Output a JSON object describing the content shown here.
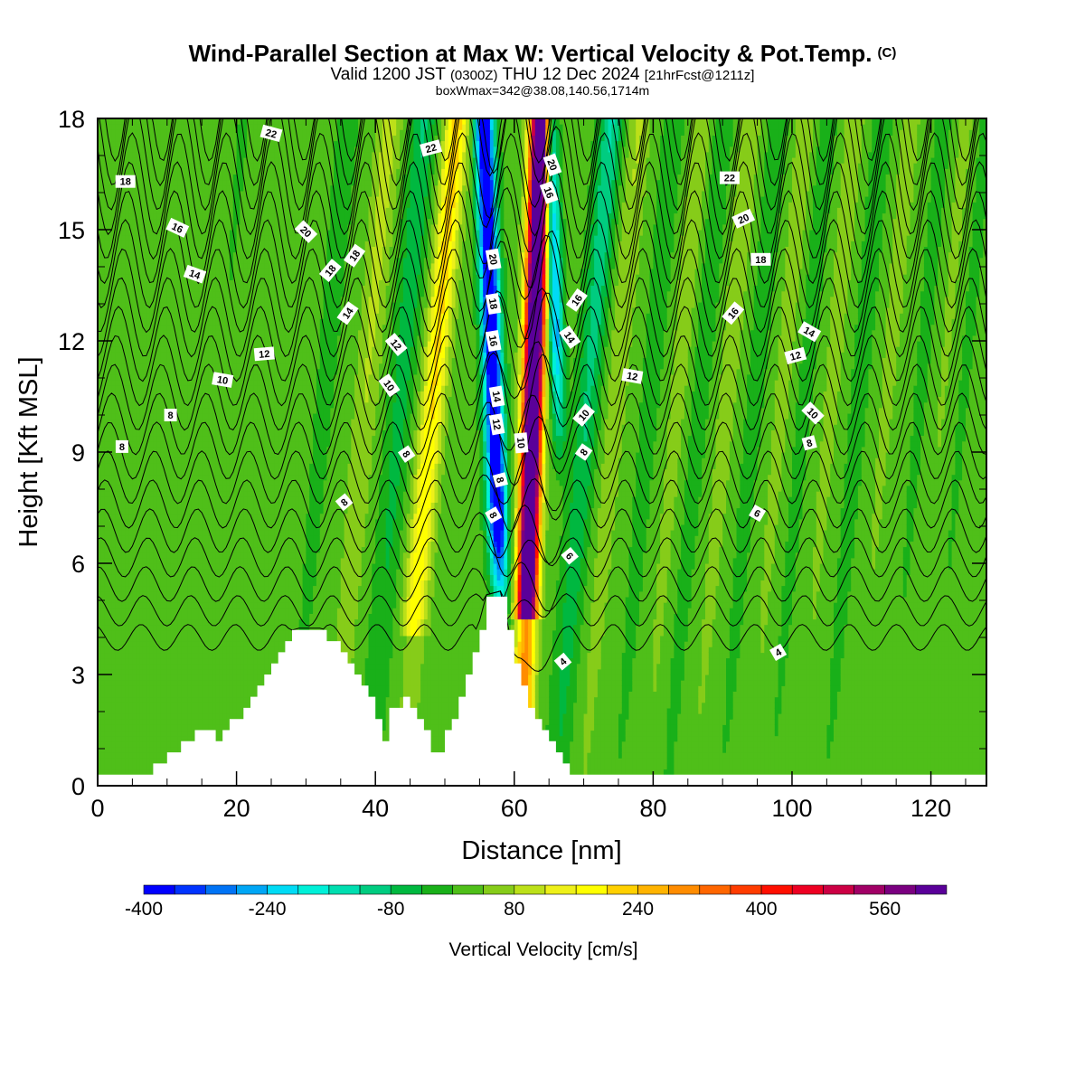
{
  "header": {
    "title": "Wind-Parallel Section at Max W: Vertical Velocity & Pot.Temp.",
    "copyright_mark": "(C)",
    "valid_prefix": "Valid 1200 JST",
    "valid_z": "(0300Z)",
    "valid_date": "THU 12 Dec 2024",
    "forecast": "[21hrFcst@1211z]",
    "box_info": "boxWmax=342@38.08,140.56,1714m"
  },
  "colors": {
    "shade_scale": [
      "#0000ff",
      "#0033ff",
      "#0073f5",
      "#00a6f5",
      "#00dbf5",
      "#00f0d8",
      "#00deb0",
      "#00cc80",
      "#00b840",
      "#19b019",
      "#4fbf19",
      "#86cc19",
      "#bce019",
      "#eef019",
      "#ffff00",
      "#ffd000",
      "#ffb300",
      "#ff8c00",
      "#ff6600",
      "#ff3c00",
      "#ff0f00",
      "#ee0022",
      "#cc0044",
      "#a10066",
      "#7a0080",
      "#5a0099"
    ],
    "terrain": "#ffffff",
    "contour": "#000000"
  },
  "chart_data": {
    "type": "heatmap",
    "xlabel": "Distance [nm]",
    "ylabel": "Height [Kft MSL]",
    "xlim": [
      0,
      128
    ],
    "ylim": [
      0,
      18
    ],
    "x_ticks": [
      "0",
      "20",
      "40",
      "60",
      "80",
      "100",
      "120"
    ],
    "y_ticks": [
      "0",
      "3",
      "6",
      "9",
      "12",
      "15",
      "18"
    ],
    "colorbar": {
      "title": "Vertical Velocity [cm/s]",
      "min": -400,
      "max": 640,
      "step": 40,
      "tick_labels": [
        "-400",
        "-240",
        "-80",
        "80",
        "240",
        "400",
        "560"
      ],
      "tick_values": [
        -400,
        -240,
        -80,
        80,
        240,
        400,
        560
      ]
    },
    "terrain_profile": [
      [
        0,
        0.3
      ],
      [
        6.5,
        0.3
      ],
      [
        8,
        0.6
      ],
      [
        10.5,
        0.9
      ],
      [
        13,
        1.3
      ],
      [
        15,
        1.6
      ],
      [
        17,
        1.3
      ],
      [
        18,
        1.6
      ],
      [
        20,
        1.9
      ],
      [
        22,
        2.5
      ],
      [
        24,
        3.1
      ],
      [
        26,
        3.7
      ],
      [
        27,
        4.0
      ],
      [
        29,
        4.1
      ],
      [
        32,
        4.1
      ],
      [
        33,
        3.9
      ],
      [
        35,
        3.6
      ],
      [
        37,
        3.1
      ],
      [
        39,
        2.5
      ],
      [
        40,
        1.9
      ],
      [
        41,
        1.3
      ],
      [
        42,
        2.0
      ],
      [
        44,
        2.3
      ],
      [
        45,
        2.2
      ],
      [
        46,
        1.7
      ],
      [
        48,
        1.0
      ],
      [
        49,
        0.9
      ],
      [
        50,
        1.5
      ],
      [
        52,
        2.3
      ],
      [
        54,
        3.6
      ],
      [
        55,
        4.3
      ],
      [
        56,
        5.0
      ],
      [
        58,
        5.1
      ],
      [
        60,
        3.4
      ],
      [
        62,
        2.0
      ],
      [
        64,
        1.6
      ],
      [
        65,
        1.2
      ],
      [
        66,
        0.9
      ],
      [
        67,
        0.6
      ],
      [
        68,
        0.3
      ],
      [
        128,
        0.3
      ]
    ],
    "contour_labels": [
      {
        "x": 25,
        "y": 17.6,
        "value": "22",
        "angle": 15
      },
      {
        "x": 48,
        "y": 17.2,
        "value": "22",
        "angle": -15
      },
      {
        "x": 4,
        "y": 16.3,
        "value": "18",
        "angle": 0
      },
      {
        "x": 11.5,
        "y": 15.05,
        "value": "16",
        "angle": 25
      },
      {
        "x": 14,
        "y": 13.8,
        "value": "14",
        "angle": 20
      },
      {
        "x": 30,
        "y": 14.95,
        "value": "20",
        "angle": 45
      },
      {
        "x": 33.5,
        "y": 13.9,
        "value": "18",
        "angle": -50
      },
      {
        "x": 37,
        "y": 14.3,
        "value": "18",
        "angle": -55
      },
      {
        "x": 36,
        "y": 12.75,
        "value": "14",
        "angle": -55
      },
      {
        "x": 24,
        "y": 11.65,
        "value": "12",
        "angle": -5
      },
      {
        "x": 18,
        "y": 10.95,
        "value": "10",
        "angle": 10
      },
      {
        "x": 10.5,
        "y": 10.0,
        "value": "8",
        "angle": 0
      },
      {
        "x": 3.5,
        "y": 9.15,
        "value": "8",
        "angle": 0
      },
      {
        "x": 43,
        "y": 11.9,
        "value": "12",
        "angle": 50
      },
      {
        "x": 42,
        "y": 10.8,
        "value": "10",
        "angle": 55
      },
      {
        "x": 44.5,
        "y": 8.95,
        "value": "8",
        "angle": 55
      },
      {
        "x": 35.5,
        "y": 7.65,
        "value": "8",
        "angle": -40
      },
      {
        "x": 57,
        "y": 14.2,
        "value": "20",
        "angle": 80
      },
      {
        "x": 57,
        "y": 13.0,
        "value": "18",
        "angle": 80
      },
      {
        "x": 57,
        "y": 12.0,
        "value": "16",
        "angle": 80
      },
      {
        "x": 57.5,
        "y": 10.5,
        "value": "14",
        "angle": 80
      },
      {
        "x": 57.5,
        "y": 9.75,
        "value": "12",
        "angle": 80
      },
      {
        "x": 61,
        "y": 9.25,
        "value": "10",
        "angle": 85
      },
      {
        "x": 58,
        "y": 8.25,
        "value": "8",
        "angle": 75
      },
      {
        "x": 57,
        "y": 7.3,
        "value": "8",
        "angle": 60
      },
      {
        "x": 65.5,
        "y": 16.75,
        "value": "20",
        "angle": 70
      },
      {
        "x": 65,
        "y": 16.0,
        "value": "16",
        "angle": 70
      },
      {
        "x": 69,
        "y": 13.1,
        "value": "16",
        "angle": -55
      },
      {
        "x": 68,
        "y": 12.1,
        "value": "14",
        "angle": 55
      },
      {
        "x": 70,
        "y": 10.0,
        "value": "10",
        "angle": -50
      },
      {
        "x": 70,
        "y": 9.0,
        "value": "8",
        "angle": -55
      },
      {
        "x": 68,
        "y": 6.2,
        "value": "6",
        "angle": 50
      },
      {
        "x": 67,
        "y": 3.35,
        "value": "4",
        "angle": -40
      },
      {
        "x": 91,
        "y": 16.4,
        "value": "22",
        "angle": 0
      },
      {
        "x": 93,
        "y": 15.3,
        "value": "20",
        "angle": -25
      },
      {
        "x": 95.5,
        "y": 14.2,
        "value": "18",
        "angle": 0
      },
      {
        "x": 91.5,
        "y": 12.75,
        "value": "16",
        "angle": -50
      },
      {
        "x": 77,
        "y": 11.05,
        "value": "12",
        "angle": 10
      },
      {
        "x": 102.5,
        "y": 12.25,
        "value": "14",
        "angle": 30
      },
      {
        "x": 100.5,
        "y": 11.6,
        "value": "12",
        "angle": -15
      },
      {
        "x": 103,
        "y": 10.05,
        "value": "10",
        "angle": 45
      },
      {
        "x": 102.5,
        "y": 9.25,
        "value": "8",
        "angle": -15
      },
      {
        "x": 95,
        "y": 7.35,
        "value": "6",
        "angle": 30
      },
      {
        "x": 98,
        "y": 3.6,
        "value": "4",
        "angle": -30
      }
    ]
  }
}
